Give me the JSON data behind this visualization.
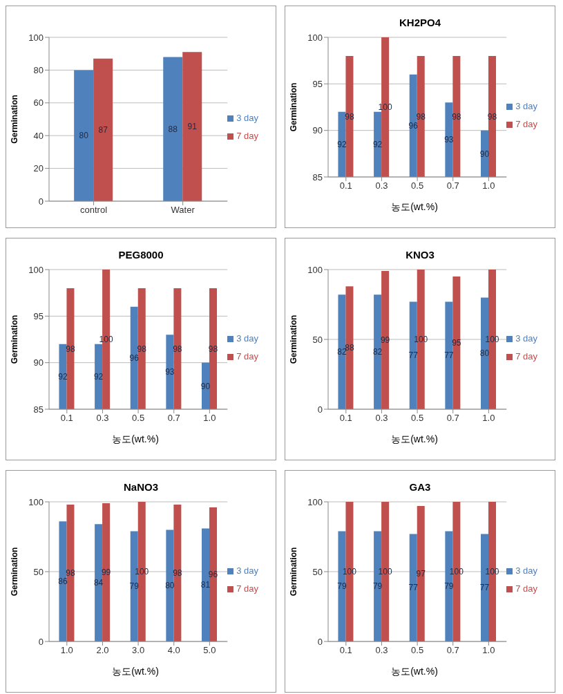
{
  "chart_data": [
    {
      "type": "bar",
      "ylabel": "Germination",
      "categories": [
        "control",
        "Water"
      ],
      "ylim": [
        0,
        100
      ],
      "yticks": [
        0,
        20,
        40,
        60,
        80,
        100
      ],
      "grid": "y",
      "legend": "right",
      "data_labels": true,
      "series": [
        {
          "name": "3 day",
          "color": "#4f81bd",
          "values": [
            80,
            88
          ]
        },
        {
          "name": "7 day",
          "color": "#c0504d",
          "values": [
            87,
            91
          ]
        }
      ]
    },
    {
      "type": "bar",
      "title": "KH2PO4",
      "xlabel": "농도(wt.%)",
      "ylabel": "Germination",
      "categories": [
        "0.1",
        "0.3",
        "0.5",
        "0.7",
        "1.0"
      ],
      "ylim": [
        85,
        100
      ],
      "yticks": [
        85,
        90,
        95,
        100
      ],
      "grid": "y",
      "legend": "right",
      "data_labels": true,
      "series": [
        {
          "name": "3 day",
          "color": "#4f81bd",
          "values": [
            92,
            92,
            96,
            93,
            90
          ]
        },
        {
          "name": "7 day",
          "color": "#c0504d",
          "values": [
            98,
            100,
            98,
            98,
            98
          ]
        }
      ]
    },
    {
      "type": "bar",
      "title": "PEG8000",
      "xlabel": "농도(wt.%)",
      "ylabel": "Germination",
      "categories": [
        "0.1",
        "0.3",
        "0.5",
        "0.7",
        "1.0"
      ],
      "ylim": [
        85,
        100
      ],
      "yticks": [
        85,
        90,
        95,
        100
      ],
      "grid": "y",
      "legend": "right",
      "data_labels": true,
      "series": [
        {
          "name": "3 day",
          "color": "#4f81bd",
          "values": [
            92,
            92,
            96,
            93,
            90
          ]
        },
        {
          "name": "7 day",
          "color": "#c0504d",
          "values": [
            98,
            100,
            98,
            98,
            98
          ]
        }
      ]
    },
    {
      "type": "bar",
      "title": "KNO3",
      "xlabel": "농도(wt.%)",
      "ylabel": "Germination",
      "categories": [
        "0.1",
        "0.3",
        "0.5",
        "0.7",
        "1.0"
      ],
      "ylim": [
        0,
        100
      ],
      "yticks": [
        0,
        50,
        100
      ],
      "grid": "y",
      "legend": "right",
      "data_labels": true,
      "series": [
        {
          "name": "3 day",
          "color": "#4f81bd",
          "values": [
            82,
            82,
            77,
            77,
            80
          ]
        },
        {
          "name": "7 day",
          "color": "#c0504d",
          "values": [
            88,
            99,
            100,
            95,
            100
          ]
        }
      ]
    },
    {
      "type": "bar",
      "title": "NaNO3",
      "xlabel": "농도(wt.%)",
      "ylabel": "Germination",
      "categories": [
        "1.0",
        "2.0",
        "3.0",
        "4.0",
        "5.0"
      ],
      "ylim": [
        0,
        100
      ],
      "yticks": [
        0,
        50,
        100
      ],
      "grid": "y",
      "legend": "right",
      "data_labels": true,
      "series": [
        {
          "name": "3 day",
          "color": "#4f81bd",
          "values": [
            86,
            84,
            79,
            80,
            81
          ]
        },
        {
          "name": "7 day",
          "color": "#c0504d",
          "values": [
            98,
            99,
            100,
            98,
            96
          ]
        }
      ]
    },
    {
      "type": "bar",
      "title": "GA3",
      "xlabel": "농도(wt.%)",
      "ylabel": "Germination",
      "categories": [
        "0.1",
        "0.3",
        "0.5",
        "0.7",
        "1.0"
      ],
      "ylim": [
        0,
        100
      ],
      "yticks": [
        0,
        50,
        100
      ],
      "grid": "y",
      "legend": "right",
      "data_labels": true,
      "series": [
        {
          "name": "3 day",
          "color": "#4f81bd",
          "values": [
            79,
            79,
            77,
            79,
            77
          ]
        },
        {
          "name": "7 day",
          "color": "#c0504d",
          "values": [
            100,
            100,
            97,
            100,
            100
          ]
        }
      ]
    }
  ]
}
